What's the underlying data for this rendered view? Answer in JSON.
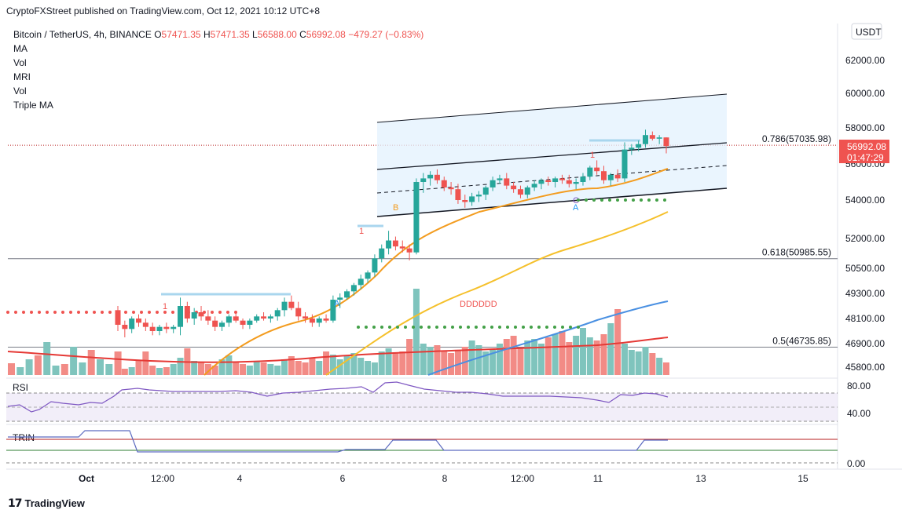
{
  "header": {
    "publisher_line": "CryptoFXStreet published on TradingView.com, Oct 12, 2021 10:12 UTC+8"
  },
  "legend": {
    "symbol": "Bitcoin / TetherUS, 4h, BINANCE",
    "o_label": "O",
    "o_value": "57471.35",
    "h_label": "H",
    "h_value": "57471.35",
    "l_label": "L",
    "l_value": "56588.00",
    "c_label": "C",
    "c_value": "56992.08",
    "change": "−479.27 (−0.83%)",
    "indicators": [
      "MA",
      "Vol",
      "MRI",
      "Vol",
      "Triple MA"
    ]
  },
  "currency": "USDT",
  "colors": {
    "up": "#26a69a",
    "down": "#ef5350",
    "up_vol": "#7fc4bd",
    "down_vol": "#f28b86",
    "channel": "#131722",
    "ma_orange": "#f39c1f",
    "ma_yellow": "#f5c02b",
    "ma_red": "#e53935",
    "ma_blue": "#4a90e2",
    "dots_green": "#43a047",
    "dots_red": "#ef5350"
  },
  "chart_data": [
    {
      "type": "candlestick",
      "title": "Bitcoin / TetherUS, 4h, BINANCE",
      "ylim": [
        45000,
        64000
      ],
      "y_ticks": [
        "62000.00",
        "60000.00",
        "58000.00",
        "56000.00",
        "54000.00",
        "52000.00",
        "50500.00",
        "49300.00",
        "48100.00",
        "46900.00",
        "45800.00"
      ],
      "y_tick_values": [
        62000,
        60000,
        58000,
        56000,
        54000,
        52000,
        50500,
        49300,
        48100,
        46900,
        45800
      ],
      "x_ticks": [
        "Oct",
        "12:00",
        "4",
        "6",
        "8",
        "12:00",
        "11",
        "13",
        "15"
      ],
      "last_price_label": "56992.08",
      "countdown_label": "01:47:29",
      "fib_levels": [
        {
          "label": "0.786(57035.98)",
          "value": 57035.98
        },
        {
          "label": "0.618(50985.55)",
          "value": 50985.55
        },
        {
          "label": "0.5(46735.85)",
          "value": 46735.85
        }
      ],
      "annotations": [
        "1",
        "A",
        "1",
        "B",
        "DDDDDD",
        "1",
        "C",
        "A"
      ],
      "candles": [
        [
          48500,
          48700,
          47500,
          47800
        ],
        [
          47800,
          48000,
          47200,
          47600
        ],
        [
          47600,
          48200,
          47400,
          48100
        ],
        [
          48100,
          48300,
          47700,
          47900
        ],
        [
          47900,
          48100,
          47500,
          47700
        ],
        [
          47700,
          47900,
          47300,
          47500
        ],
        [
          47500,
          47800,
          47300,
          47700
        ],
        [
          47700,
          47900,
          47400,
          47600
        ],
        [
          47600,
          47800,
          47400,
          47700
        ],
        [
          47700,
          49100,
          47300,
          48700
        ],
        [
          48700,
          48900,
          47900,
          48100
        ],
        [
          48100,
          48600,
          47800,
          48400
        ],
        [
          48400,
          48700,
          48000,
          48200
        ],
        [
          48200,
          48500,
          47800,
          48000
        ],
        [
          48000,
          48200,
          47500,
          47700
        ],
        [
          47700,
          48000,
          47500,
          47900
        ],
        [
          47900,
          48300,
          47700,
          48200
        ],
        [
          48200,
          48400,
          47900,
          48000
        ],
        [
          48000,
          48100,
          47600,
          47800
        ],
        [
          47800,
          48100,
          47600,
          48000
        ],
        [
          48000,
          48300,
          47900,
          48200
        ],
        [
          48200,
          48400,
          48000,
          48100
        ],
        [
          48100,
          48300,
          47900,
          48200
        ],
        [
          48200,
          48600,
          48000,
          48500
        ],
        [
          48500,
          49100,
          48200,
          48900
        ],
        [
          48900,
          49200,
          48500,
          48600
        ],
        [
          48600,
          48900,
          48000,
          48200
        ],
        [
          48200,
          48400,
          47900,
          48100
        ],
        [
          48100,
          48300,
          47700,
          47900
        ],
        [
          47900,
          48200,
          47700,
          48100
        ],
        [
          48100,
          48300,
          47900,
          48000
        ],
        [
          48000,
          49200,
          47900,
          49000
        ],
        [
          49000,
          49300,
          48600,
          49100
        ],
        [
          49100,
          49500,
          49000,
          49400
        ],
        [
          49400,
          49800,
          49200,
          49700
        ],
        [
          49700,
          50200,
          49500,
          50000
        ],
        [
          50000,
          50400,
          49800,
          50300
        ],
        [
          50300,
          51200,
          50100,
          51000
        ],
        [
          51000,
          51700,
          50800,
          51500
        ],
        [
          51500,
          52400,
          51200,
          51900
        ],
        [
          51900,
          52100,
          51400,
          51600
        ],
        [
          51600,
          51900,
          51300,
          51500
        ],
        [
          51500,
          51700,
          50900,
          51300
        ],
        [
          51300,
          55200,
          51200,
          55000
        ],
        [
          55000,
          55500,
          54400,
          55200
        ],
        [
          55200,
          55600,
          54800,
          55400
        ],
        [
          55400,
          55700,
          54900,
          55100
        ],
        [
          55100,
          55300,
          54500,
          54700
        ],
        [
          54700,
          55000,
          54300,
          54600
        ],
        [
          54600,
          54900,
          53800,
          54000
        ],
        [
          54000,
          54300,
          53600,
          53900
        ],
        [
          53900,
          54400,
          53700,
          54200
        ],
        [
          54200,
          54500,
          53900,
          54300
        ],
        [
          54300,
          54800,
          54000,
          54700
        ],
        [
          54700,
          55300,
          54500,
          55100
        ],
        [
          55100,
          55400,
          54900,
          55200
        ],
        [
          55200,
          55500,
          54600,
          54800
        ],
        [
          54800,
          55000,
          54400,
          54600
        ],
        [
          54600,
          54800,
          54100,
          54300
        ],
        [
          54300,
          54800,
          54100,
          54700
        ],
        [
          54700,
          55100,
          54500,
          54900
        ],
        [
          54900,
          55200,
          54600,
          55100
        ],
        [
          55100,
          55300,
          54800,
          55000
        ],
        [
          55000,
          55300,
          54700,
          55200
        ],
        [
          55200,
          55400,
          54900,
          55100
        ],
        [
          55100,
          55400,
          54700,
          54900
        ],
        [
          54900,
          55200,
          54600,
          55000
        ],
        [
          55000,
          55500,
          54800,
          55300
        ],
        [
          55300,
          55900,
          55100,
          55800
        ],
        [
          55800,
          56200,
          55400,
          55600
        ],
        [
          55600,
          55900,
          54900,
          55100
        ],
        [
          55100,
          55500,
          54800,
          55400
        ],
        [
          55400,
          55700,
          55000,
          55200
        ],
        [
          55200,
          57200,
          55000,
          56800
        ],
        [
          56800,
          57100,
          56500,
          56900
        ],
        [
          56900,
          57300,
          56700,
          57100
        ],
        [
          57100,
          57900,
          56900,
          57600
        ],
        [
          57600,
          57800,
          57300,
          57400
        ],
        [
          57400,
          57600,
          57100,
          57471
        ],
        [
          57471,
          57471,
          56588,
          56992
        ]
      ]
    },
    {
      "type": "line",
      "title": "RSI",
      "y_ticks": [
        "80.00",
        "40.00"
      ],
      "ylim": [
        20,
        85
      ]
    },
    {
      "type": "line",
      "title": "TRIN",
      "y_ticks": [
        "0.00"
      ],
      "ylim": [
        0,
        6
      ]
    }
  ]
}
